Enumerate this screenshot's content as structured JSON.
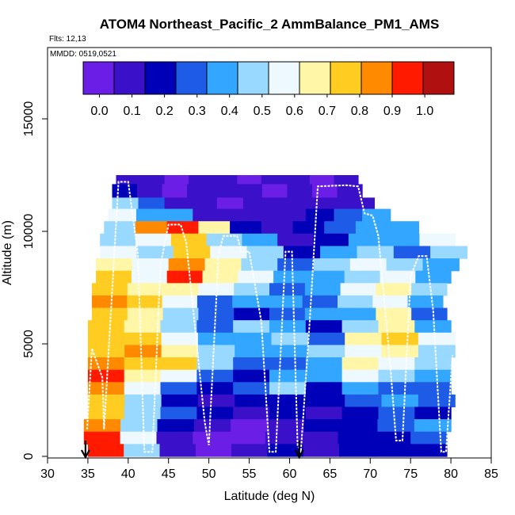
{
  "chart_data": {
    "type": "heatmap",
    "title": "ATOM4 Northeast_Pacific_2 AmmBalance_PM1_AMS",
    "flights_label": "Flts: 12,13",
    "mmdd_label": "MMDD: 0519,0521",
    "xlabel": "Latitude (deg N)",
    "ylabel": "Altitude (m)",
    "xlim": [
      30,
      85
    ],
    "ylim": [
      0,
      17500
    ],
    "xticks": [
      "30",
      "35",
      "40",
      "45",
      "50",
      "55",
      "60",
      "65",
      "70",
      "75",
      "80",
      "85"
    ],
    "yticks": [
      "0",
      "5000",
      "10000",
      "15000"
    ],
    "colorbar": {
      "ticks": [
        "0.0",
        "0.1",
        "0.2",
        "0.3",
        "0.4",
        "0.5",
        "0.6",
        "0.7",
        "0.8",
        "0.9",
        "1.0"
      ],
      "min": -0.05,
      "max": 1.09,
      "bins": 11,
      "colors": [
        "#6b1ee6",
        "#3a10c8",
        "#0000b8",
        "#1e5be6",
        "#33a6ff",
        "#9ad9ff",
        "#eef8ff",
        "#fff6a8",
        "#ffcc22",
        "#ff8a00",
        "#ff1a00",
        "#b01010"
      ]
    },
    "markers": [
      {
        "lat": 34.7,
        "direction": "down"
      },
      {
        "lat": 61.2,
        "direction": "down"
      }
    ],
    "cells": [
      {
        "lat": [
          38.5,
          68.5
        ],
        "alt": [
          12500,
          12100
        ],
        "values": [
          0.05,
          0.08,
          0.04,
          0.06,
          0.07,
          0.03,
          0.05,
          0.06,
          0.04,
          0.05
        ]
      },
      {
        "lat": [
          38.0,
          69.0
        ],
        "alt": [
          12100,
          11500
        ],
        "values": [
          0.15,
          0.05,
          0.04,
          0.08,
          0.05,
          0.06,
          0.03,
          0.05,
          0.04,
          0.08
        ]
      },
      {
        "lat": [
          38.0,
          70.5
        ],
        "alt": [
          11500,
          11000
        ],
        "values": [
          0.45,
          0.3,
          0.06,
          0.05,
          0.04,
          0.07,
          0.05,
          0.08,
          0.05,
          0.12
        ]
      },
      {
        "lat": [
          37.5,
          72.5
        ],
        "alt": [
          11000,
          10450
        ],
        "values": [
          0.55,
          0.4,
          0.35,
          0.12,
          0.06,
          0.05,
          0.08,
          0.15,
          0.3,
          0.35
        ]
      },
      {
        "lat": [
          37.0,
          76.0
        ],
        "alt": [
          10450,
          9900
        ],
        "values": [
          0.45,
          0.85,
          0.95,
          0.65,
          0.15,
          0.05,
          0.2,
          0.3,
          0.35,
          0.4
        ]
      },
      {
        "lat": [
          36.5,
          80.5
        ],
        "alt": [
          9900,
          9350
        ],
        "values": [
          0.5,
          0.6,
          0.8,
          0.5,
          0.35,
          0.1,
          0.2,
          0.4,
          0.35,
          0.6
        ]
      },
      {
        "lat": [
          36.5,
          82.0
        ],
        "alt": [
          9350,
          8800
        ],
        "values": [
          0.6,
          0.5,
          0.75,
          0.55,
          0.45,
          0.2,
          0.35,
          0.45,
          0.3,
          0.45
        ]
      },
      {
        "lat": [
          36.0,
          81.0
        ],
        "alt": [
          8800,
          8250
        ],
        "values": [
          0.7,
          0.55,
          0.85,
          0.65,
          0.5,
          0.3,
          0.45,
          0.55,
          0.5,
          0.4
        ]
      },
      {
        "lat": [
          36.0,
          80.0
        ],
        "alt": [
          8250,
          7700
        ],
        "values": [
          0.75,
          0.6,
          0.9,
          0.7,
          0.55,
          0.4,
          0.35,
          0.45,
          0.6,
          0.35
        ]
      },
      {
        "lat": [
          35.5,
          79.5
        ],
        "alt": [
          7700,
          7150
        ],
        "values": [
          0.8,
          0.7,
          0.65,
          0.6,
          0.45,
          0.3,
          0.4,
          0.6,
          0.7,
          0.5
        ]
      },
      {
        "lat": [
          35.5,
          79.0
        ],
        "alt": [
          7150,
          6600
        ],
        "values": [
          0.85,
          0.75,
          0.55,
          0.3,
          0.35,
          0.4,
          0.3,
          0.45,
          0.55,
          0.4
        ]
      },
      {
        "lat": [
          35.5,
          79.5
        ],
        "alt": [
          6600,
          6050
        ],
        "values": [
          0.8,
          0.65,
          0.45,
          0.25,
          0.2,
          0.3,
          0.4,
          0.35,
          0.65,
          0.3
        ]
      },
      {
        "lat": [
          35.0,
          80.0
        ],
        "alt": [
          6050,
          5500
        ],
        "values": [
          0.8,
          0.7,
          0.5,
          0.3,
          0.45,
          0.35,
          0.2,
          0.45,
          0.7,
          0.35
        ]
      },
      {
        "lat": [
          35.0,
          80.5
        ],
        "alt": [
          5500,
          4950
        ],
        "values": [
          0.75,
          0.8,
          0.6,
          0.4,
          0.35,
          0.5,
          0.3,
          0.7,
          0.75,
          0.6
        ]
      },
      {
        "lat": [
          35.0,
          80.5
        ],
        "alt": [
          4950,
          4400
        ],
        "values": [
          0.8,
          0.85,
          0.7,
          0.45,
          0.4,
          0.35,
          0.45,
          0.6,
          0.7,
          0.45
        ]
      },
      {
        "lat": [
          35.0,
          80.0
        ],
        "alt": [
          4400,
          3850
        ],
        "values": [
          0.85,
          0.8,
          0.75,
          0.5,
          0.3,
          0.25,
          0.4,
          0.65,
          0.55,
          0.5
        ]
      },
      {
        "lat": [
          35.0,
          80.0
        ],
        "alt": [
          3850,
          3300
        ],
        "values": [
          0.9,
          0.7,
          0.55,
          0.25,
          0.15,
          0.4,
          0.35,
          0.6,
          0.45,
          0.4
        ]
      },
      {
        "lat": [
          35.0,
          80.0
        ],
        "alt": [
          3300,
          2750
        ],
        "values": [
          0.85,
          0.6,
          0.25,
          0.15,
          0.3,
          0.45,
          0.2,
          0.35,
          0.3,
          0.25
        ]
      },
      {
        "lat": [
          35.0,
          80.5
        ],
        "alt": [
          2750,
          2200
        ],
        "values": [
          0.8,
          0.5,
          0.2,
          0.1,
          0.2,
          0.15,
          0.2,
          0.25,
          0.35,
          0.3
        ]
      },
      {
        "lat": [
          35.0,
          80.0
        ],
        "alt": [
          2200,
          1650
        ],
        "values": [
          0.75,
          0.5,
          0.3,
          0.15,
          0.1,
          0.2,
          0.1,
          0.15,
          0.25,
          0.2
        ]
      },
      {
        "lat": [
          34.5,
          80.0
        ],
        "alt": [
          1650,
          1100
        ],
        "values": [
          0.85,
          0.45,
          0.2,
          0.05,
          0.03,
          0.1,
          0.15,
          0.2,
          0.3,
          0.4
        ]
      },
      {
        "lat": [
          34.5,
          79.5
        ],
        "alt": [
          1100,
          550
        ],
        "values": [
          0.9,
          0.55,
          0.1,
          0.02,
          0.04,
          0.05,
          0.1,
          0.2,
          0.15,
          0.25
        ]
      },
      {
        "lat": [
          35.0,
          79.5
        ],
        "alt": [
          550,
          0
        ],
        "values": [
          0.9,
          0.5,
          0.08,
          0.03,
          0.1,
          0.15,
          0.12,
          0.2,
          0.15,
          0.2
        ]
      }
    ],
    "flight_track": [
      [
        34.9,
        1200
      ],
      [
        35.5,
        4800
      ],
      [
        36.8,
        3500
      ],
      [
        37.0,
        1200
      ],
      [
        38.8,
        12200
      ],
      [
        40.0,
        12200
      ],
      [
        41.2,
        9000
      ],
      [
        42.0,
        200
      ],
      [
        43.0,
        200
      ],
      [
        44.0,
        8500
      ],
      [
        45.0,
        10300
      ],
      [
        46.5,
        10300
      ],
      [
        47.2,
        9500
      ],
      [
        49.5,
        1500
      ],
      [
        50.0,
        500
      ],
      [
        51.2,
        9000
      ],
      [
        51.8,
        9800
      ],
      [
        53.5,
        9800
      ],
      [
        54.0,
        9100
      ],
      [
        55.0,
        9100
      ],
      [
        56.5,
        6000
      ],
      [
        57.5,
        200
      ],
      [
        58.3,
        200
      ],
      [
        59.5,
        9100
      ],
      [
        60.3,
        9100
      ],
      [
        61.0,
        500
      ],
      [
        61.4,
        200
      ],
      [
        62.5,
        6000
      ],
      [
        63.5,
        12000
      ],
      [
        67.0,
        12050
      ],
      [
        68.5,
        12000
      ],
      [
        69.3,
        10800
      ],
      [
        70.3,
        10700
      ],
      [
        71.0,
        9800
      ],
      [
        72.5,
        4000
      ],
      [
        73.2,
        700
      ],
      [
        74.0,
        700
      ],
      [
        75.0,
        8000
      ],
      [
        76.0,
        8900
      ],
      [
        77.0,
        8900
      ],
      [
        77.8,
        6500
      ],
      [
        78.8,
        200
      ],
      [
        79.4,
        200
      ],
      [
        80.2,
        4500
      ]
    ]
  }
}
